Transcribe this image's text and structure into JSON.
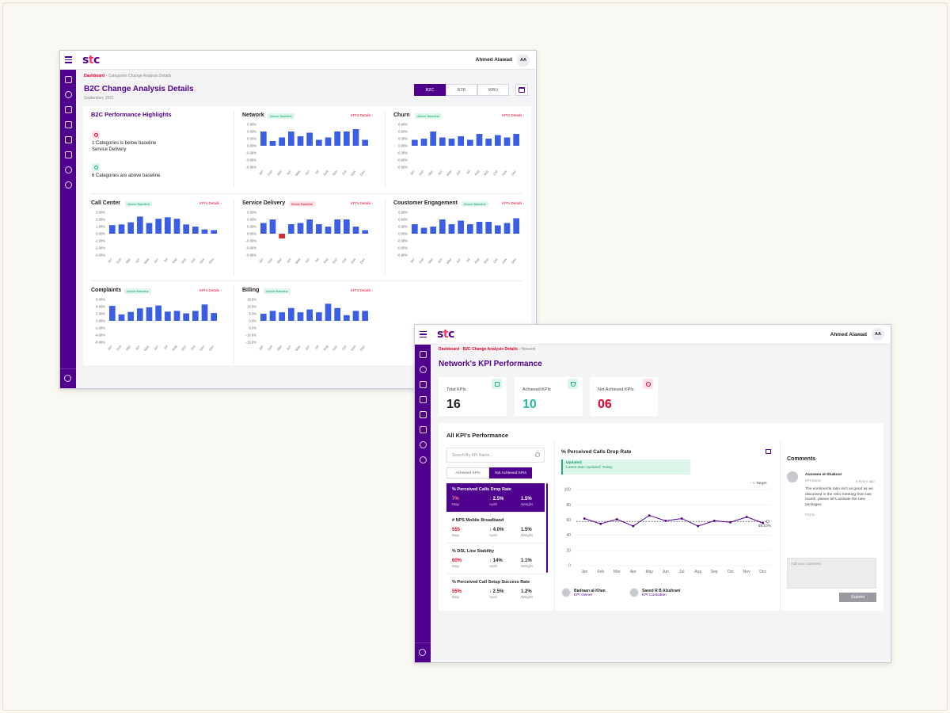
{
  "colors": {
    "brand": "#4f008c",
    "accent_red": "#e4002b",
    "bar_blue": "#3a5fe5",
    "bar_red": "#d32f2f",
    "success": "#1bb07b"
  },
  "app": {
    "logo": "stc",
    "user_name": "Ahmed Alawad",
    "user_initials": "AA"
  },
  "window1": {
    "breadcrumb": {
      "root": "Dashboard",
      "current": "Categories Change Analysis Details"
    },
    "title": "B2C Change Analysis Details",
    "subtitle": "September, 2021",
    "segments": [
      "B2C",
      "B2B",
      "WBU"
    ],
    "selected_segment": "B2C",
    "highlights": {
      "title": "B2C Performance Highlights",
      "below_line1": "1 Categories is below baseline",
      "below_line2": "Service Delivery",
      "above_line": "6 Categories are above baseline"
    }
  },
  "chart_data": [
    {
      "type": "bar",
      "title": "Network",
      "badge": "Above Baseline",
      "link": "KPI's Details",
      "categories": [
        "Jan",
        "Feb",
        "Mar",
        "Apr",
        "May",
        "Jun",
        "Jul",
        "Aug",
        "Sep",
        "Oct",
        "Nov",
        "Dec"
      ],
      "y_ticks": [
        "0.90%",
        "0.60%",
        "0.30%",
        "0.00%",
        "-0.30%",
        "-0.60%",
        "-0.90%"
      ],
      "ylim": [
        -0.9,
        0.9
      ],
      "values": [
        0.6,
        0.2,
        0.35,
        0.6,
        0.4,
        0.55,
        0.25,
        0.35,
        0.6,
        0.6,
        0.7,
        0.25
      ]
    },
    {
      "type": "bar",
      "title": "Churn",
      "badge": "Above Baseline",
      "link": "KPI's Details",
      "categories": [
        "Jan",
        "Feb",
        "Mar",
        "Apr",
        "May",
        "Jun",
        "Jul",
        "Aug",
        "Sep",
        "Oct",
        "Nov",
        "Dec"
      ],
      "y_ticks": [
        "0.90%",
        "0.60%",
        "0.30%",
        "0.00%",
        "-0.30%",
        "-0.60%",
        "-0.90%"
      ],
      "ylim": [
        -0.9,
        0.9
      ],
      "values": [
        0.25,
        0.3,
        0.6,
        0.35,
        0.3,
        0.4,
        0.25,
        0.5,
        0.3,
        0.45,
        0.35,
        0.5
      ]
    },
    {
      "type": "bar",
      "title": "Call Center",
      "badge": "Above Baseline",
      "link": "KPI's Details",
      "categories": [
        "Jan",
        "Feb",
        "Mar",
        "Apr",
        "May",
        "Jun",
        "Jul",
        "Aug",
        "Sep",
        "Oct",
        "Nov",
        "Dec"
      ],
      "y_ticks": [
        "3.00%",
        "2.00%",
        "1.00%",
        "0.00%",
        "-1.00%",
        "-2.00%",
        "-3.00%"
      ],
      "ylim": [
        -3,
        3
      ],
      "values": [
        1.2,
        1.3,
        1.6,
        2.4,
        1.5,
        2.1,
        2.3,
        2.1,
        1.3,
        1.0,
        0.6,
        0.5
      ]
    },
    {
      "type": "bar",
      "title": "Service Delivery",
      "badge": "Below Baseline",
      "link": "KPI's Details",
      "categories": [
        "Jan",
        "Feb",
        "Mar",
        "Apr",
        "May",
        "Jun",
        "Jul",
        "Aug",
        "Sep",
        "Oct",
        "Nov",
        "Dec"
      ],
      "y_ticks": [
        "0.90%",
        "0.60%",
        "0.30%",
        "0.00%",
        "-0.30%",
        "-0.60%",
        "-0.90%"
      ],
      "ylim": [
        -0.9,
        0.9
      ],
      "values": [
        0.45,
        0.6,
        -0.2,
        0.4,
        0.45,
        0.6,
        0.4,
        0.3,
        0.6,
        0.6,
        0.3,
        0.15
      ]
    },
    {
      "type": "bar",
      "title": "Coustomer Engagement",
      "badge": "Above Baseline",
      "link": "KPI's Details",
      "categories": [
        "Jan",
        "Feb",
        "Mar",
        "Apr",
        "May",
        "Jun",
        "Jul",
        "Aug",
        "Sep",
        "Oct",
        "Nov",
        "Dec"
      ],
      "y_ticks": [
        "0.90%",
        "0.60%",
        "0.30%",
        "0.00%",
        "-0.30%",
        "-0.60%",
        "-0.90%"
      ],
      "ylim": [
        -0.9,
        0.9
      ],
      "values": [
        0.4,
        0.25,
        0.3,
        0.6,
        0.4,
        0.55,
        0.4,
        0.5,
        0.5,
        0.35,
        0.45,
        0.65
      ]
    },
    {
      "type": "bar",
      "title": "Complaints",
      "badge": "Above Baseline",
      "link": "KPI's Details",
      "categories": [
        "Jan",
        "Feb",
        "Mar",
        "Apr",
        "May",
        "Jun",
        "Jul",
        "Aug",
        "Sep",
        "Oct",
        "Nov",
        "Dec"
      ],
      "y_ticks": [
        "6.00%",
        "4.00%",
        "2.00%",
        "0.00%",
        "-2.00%",
        "-4.00%",
        "-6.00%"
      ],
      "ylim": [
        -6,
        6
      ],
      "values": [
        4.2,
        1.8,
        2.5,
        3.5,
        3.8,
        4.3,
        2.6,
        2.8,
        2.1,
        2.8,
        4.6,
        2.2
      ]
    },
    {
      "type": "bar",
      "title": "Billing",
      "badge": "Above Baseline",
      "link": "KPI's Details",
      "categories": [
        "Jan",
        "Feb",
        "Mar",
        "Apr",
        "May",
        "Jun",
        "Jul",
        "Aug",
        "Sep",
        "Oct",
        "Nov",
        "Dec"
      ],
      "y_ticks": [
        "15.0%",
        "10.0%",
        "5.0%",
        "0.0%",
        "-5.0%",
        "-10.0%",
        "-15.0%"
      ],
      "ylim": [
        -15,
        15
      ],
      "values": [
        5,
        7,
        6,
        9,
        6,
        8,
        6,
        12,
        9,
        4,
        7,
        7
      ]
    },
    {
      "type": "line",
      "title": "% Perceived Calls Drop Rate",
      "categories": [
        "Jan",
        "Feb",
        "Mar",
        "Apr",
        "May",
        "Jun",
        "Jul",
        "Aug",
        "Sep",
        "Oct",
        "Nov",
        "Dec"
      ],
      "y_ticks": [
        "100",
        "80",
        "60",
        "40",
        "20",
        "0"
      ],
      "ylim": [
        0,
        100
      ],
      "values": [
        62,
        55,
        61,
        52,
        66,
        59,
        62,
        52,
        59,
        57,
        64,
        56
      ],
      "target": 58.1,
      "target_label": "58.10%",
      "legend": "Target"
    }
  ],
  "window2": {
    "breadcrumb": {
      "root": "Dashboard",
      "mid": "B2C Change Analysis Details",
      "current": "Network"
    },
    "title": "Network's KPI Performance",
    "cards": [
      {
        "label": "Total KPIs",
        "value": "16",
        "color": "#222222"
      },
      {
        "label": "Achieved KPIs",
        "value": "10",
        "color": "#2bb8a3"
      },
      {
        "label": "Not Achieved KPIs",
        "value": "06",
        "color": "#e4002b"
      }
    ],
    "all_title": "All KPI's Performance",
    "search_placeholder": "Search By KPI Name...",
    "tabs": [
      "Achieved KPIs",
      "Not Achieved KPIs"
    ],
    "kpis": [
      {
        "name": "% Perceived Calls Drop Rate",
        "v1": "7%",
        "c1": "May",
        "v2": "2.5%",
        "c2": "April",
        "v3": "1.5%",
        "c3": "Weight"
      },
      {
        "name": "# NPS Mobile Broadband",
        "v1": "555",
        "c1": "May",
        "v2": "4.0%",
        "c2": "April",
        "v3": "1.5%",
        "c3": "Weight"
      },
      {
        "name": "% DSL Line Stability",
        "v1": "60%",
        "c1": "May",
        "v2": "14%",
        "c2": "April",
        "v3": "1.1%",
        "c3": "Weight"
      },
      {
        "name": "% Perceived Call Setup Success Rate",
        "v1": "55%",
        "c1": "May",
        "v2": "2.5%",
        "c2": "April",
        "v3": "1.2%",
        "c3": "Weight"
      }
    ],
    "updated": {
      "title": "Updated:",
      "text": "Latest date Updated: Today"
    },
    "owners": [
      {
        "name": "Badraan al-Khan",
        "role": "KPI Owner"
      },
      {
        "name": "Saeed R B Alzahrani",
        "role": "KPI Custodian"
      }
    ],
    "comments": {
      "title": "Comments",
      "author": "Annnees el-Shakoor",
      "role": "KPI Owner",
      "time": "5 hours ago",
      "text": "The enrolments ratio isn't as good as we discussed in the retro meeting from last month, please let's activate the new packages.",
      "reply": "Reply",
      "placeholder": "Add your comment",
      "submit": "Submit"
    }
  }
}
